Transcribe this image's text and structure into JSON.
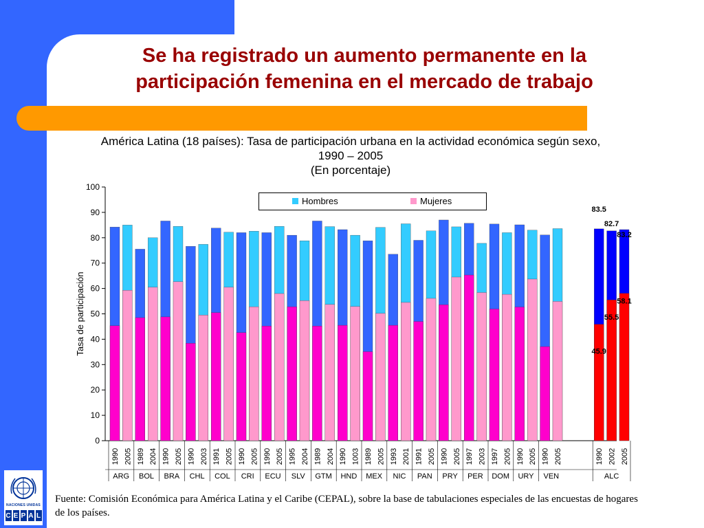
{
  "slide": {
    "title_line1": "Se ha registrado un aumento permanente en la",
    "title_line2": "participación femenina en el mercado de trabajo",
    "subtitle_line1": "América Latina (18 países): Tasa de participación urbana en la actividad económica según sexo,",
    "subtitle_line2": "1990 – 2005",
    "subtitle_line3": "(En porcentaje)",
    "source_line1": "Fuente: Comisión Económica para América Latina y el Caribe (CEPAL), sobre la base de tabulaciones especiales de las encuestas de hogares",
    "source_line2": "de los países.",
    "logo_text": "NACIONES UNIDAS",
    "logo_letters": [
      "C",
      "E",
      "P",
      "A",
      "L"
    ],
    "colors": {
      "blue": "#3366ff",
      "orange": "#ff9900",
      "title": "#990000"
    }
  },
  "chart_data": {
    "type": "bar",
    "stacking": "overlapping",
    "ylabel": "Tasa de participación",
    "ylim": [
      0,
      100
    ],
    "yticks": [
      0,
      10,
      20,
      30,
      40,
      50,
      60,
      70,
      80,
      90,
      100
    ],
    "legend": [
      "Hombres",
      "Mujeres"
    ],
    "legend_position": "top",
    "colors": {
      "hombres_1990": "#3366ff",
      "hombres_2005": "#33ccff",
      "mujeres_1990": "#ff00cc",
      "mujeres_2005": "#ff99cc",
      "alc_hombres": "#0000ff",
      "alc_mujeres": "#ff0000"
    },
    "groups": [
      {
        "country": "ARG",
        "years": [
          "1990",
          "2005"
        ],
        "hombres": [
          84.2,
          85.0
        ],
        "mujeres": [
          45.3,
          59.3
        ]
      },
      {
        "country": "BOL",
        "years": [
          "1989",
          "2004"
        ],
        "hombres": [
          75.5,
          80.0
        ],
        "mujeres": [
          48.5,
          60.5
        ]
      },
      {
        "country": "BRA",
        "years": [
          "1990",
          "2005"
        ],
        "hombres": [
          86.6,
          84.5
        ],
        "mujeres": [
          48.8,
          62.7
        ]
      },
      {
        "country": "CHL",
        "years": [
          "1990",
          "2003"
        ],
        "hombres": [
          76.6,
          77.4
        ],
        "mujeres": [
          38.4,
          49.5
        ]
      },
      {
        "country": "COL",
        "years": [
          "1991",
          "2005"
        ],
        "hombres": [
          83.8,
          82.2
        ],
        "mujeres": [
          50.5,
          60.5
        ]
      },
      {
        "country": "CRI",
        "years": [
          "1990",
          "2005"
        ],
        "hombres": [
          82.0,
          82.6
        ],
        "mujeres": [
          42.6,
          52.8
        ]
      },
      {
        "country": "ECU",
        "years": [
          "1990",
          "2005"
        ],
        "hombres": [
          82.0,
          84.5
        ],
        "mujeres": [
          45.2,
          58.0
        ]
      },
      {
        "country": "SLV",
        "years": [
          "1995",
          "2004"
        ],
        "hombres": [
          81.0,
          78.8
        ],
        "mujeres": [
          52.8,
          55.2
        ]
      },
      {
        "country": "GTM",
        "years": [
          "1989",
          "2004"
        ],
        "hombres": [
          86.6,
          84.4
        ],
        "mujeres": [
          45.2,
          53.7
        ]
      },
      {
        "country": "HND",
        "years": [
          "1990",
          "1003"
        ],
        "hombres": [
          83.2,
          81.0
        ],
        "mujeres": [
          45.5,
          52.9
        ]
      },
      {
        "country": "MEX",
        "years": [
          "1989",
          "2005"
        ],
        "hombres": [
          78.8,
          84.1
        ],
        "mujeres": [
          35.1,
          50.2
        ]
      },
      {
        "country": "NIC",
        "years": [
          "1993",
          "2001"
        ],
        "hombres": [
          73.5,
          85.5
        ],
        "mujeres": [
          45.5,
          54.5
        ]
      },
      {
        "country": "PAN",
        "years": [
          "1991",
          "2005"
        ],
        "hombres": [
          79.0,
          82.7
        ],
        "mujeres": [
          47.0,
          56.1
        ]
      },
      {
        "country": "PRY",
        "years": [
          "1990",
          "2005"
        ],
        "hombres": [
          87.0,
          84.3
        ],
        "mujeres": [
          53.6,
          64.5
        ]
      },
      {
        "country": "PER",
        "years": [
          "1997",
          "2003"
        ],
        "hombres": [
          85.7,
          77.8
        ],
        "mujeres": [
          65.3,
          58.4
        ]
      },
      {
        "country": "DOM",
        "years": [
          "1997",
          "2005"
        ],
        "hombres": [
          85.4,
          82.0
        ],
        "mujeres": [
          51.9,
          57.7
        ]
      },
      {
        "country": "URY",
        "years": [
          "1990",
          "2005"
        ],
        "hombres": [
          85.1,
          83.0
        ],
        "mujeres": [
          52.7,
          63.7
        ]
      },
      {
        "country": "VEN",
        "years": [
          "1990",
          "2005"
        ],
        "hombres": [
          81.1,
          83.6
        ],
        "mujeres": [
          37.1,
          54.9
        ]
      },
      {
        "country": "ALC",
        "years": [
          "1990",
          "2002",
          "2005"
        ],
        "hombres": [
          83.5,
          82.7,
          83.2
        ],
        "mujeres": [
          45.9,
          55.5,
          58.1
        ],
        "labeled": true
      }
    ],
    "annotations": {
      "hombres_labels": [
        "83.5",
        "82.7",
        "83.2"
      ],
      "mujeres_labels": [
        "45.9",
        "55.5",
        "58.1"
      ]
    }
  }
}
